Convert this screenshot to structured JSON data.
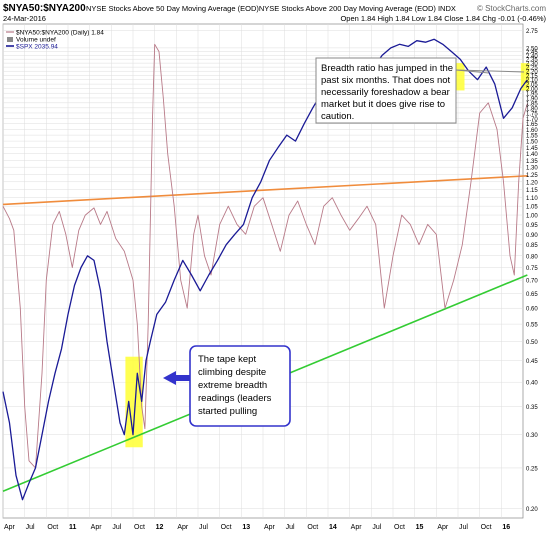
{
  "header": {
    "title": "$NYA50:$NYA200",
    "description": "NYSE Stocks Above 50 Day Moving Average (EOD)NYSE Stocks Above 200 Day Moving Average (EOD) INDX",
    "date": "24-Mar-2016",
    "ohlc": "Open 1.84  High 1.84  Low 1.84  Close 1.84  Chg -0.01 (-0.46%)",
    "source": "© StockCharts.com"
  },
  "legend": {
    "line1": "$NYA50:$NYA200 (Daily) 1.84",
    "line2": "Volume undef",
    "line3": "$SPX 2035.94"
  },
  "annotations": {
    "top_right": "Breadth ratio has jumped in the past six months. That does not necessarily foreshadow a bear market but it does give rise to caution.",
    "top_right_lines": [
      "Breadth ratio has jumped in the",
      "past six months. That does not",
      "necessarily foreshadow a bear",
      "market but it does give rise to",
      "caution."
    ],
    "bottom_left": "The tape kept climbing despite extreme breadth readings (leaders started pulling",
    "bottom_left_lines": [
      "The tape kept",
      "climbing despite",
      "extreme breadth",
      "readings (leaders",
      "started pulling"
    ]
  },
  "colors": {
    "ratio_line": "#b87a88",
    "spx_line": "#1a1a96",
    "resistance_line": "#f08c3c",
    "support_line": "#33cc33",
    "highlight": "#ffff33",
    "callout_border": "#3333cc",
    "grid": "#dddddd"
  },
  "chart_data": {
    "type": "line",
    "title": "$NYA50:$NYA200",
    "x_tick_labels": [
      "Apr",
      "Jul",
      "Oct",
      "11",
      "Apr",
      "Jul",
      "Oct",
      "12",
      "Apr",
      "Jul",
      "Oct",
      "13",
      "Apr",
      "Jul",
      "Oct",
      "14",
      "Apr",
      "Jul",
      "Oct",
      "15",
      "Apr",
      "Jul",
      "Oct",
      "16"
    ],
    "y_tick_labels": [
      "0.20",
      "0.25",
      "0.30",
      "0.35",
      "0.40",
      "0.45",
      "0.50",
      "0.55",
      "0.60",
      "0.65",
      "0.70",
      "0.75",
      "0.80",
      "0.85",
      "0.90",
      "0.95",
      "1.00",
      "1.05",
      "1.10",
      "1.15",
      "1.20",
      "1.25",
      "1.30",
      "1.35",
      "1.40",
      "1.45",
      "1.50",
      "1.55",
      "1.60",
      "1.65",
      "1.70",
      "1.75",
      "1.80",
      "1.85",
      "1.90",
      "1.95",
      "2.00",
      "2.05",
      "2.10",
      "2.15",
      "2.20",
      "2.25",
      "2.30",
      "2.35",
      "2.40",
      "2.45",
      "2.50",
      "2.75"
    ],
    "yscale": "log",
    "ylim": [
      0.19,
      2.85
    ],
    "grid": true,
    "series": [
      {
        "name": "$NYA50:$NYA200",
        "type": "ratio",
        "points": [
          [
            0.0,
            1.05
          ],
          [
            0.3,
            0.98
          ],
          [
            0.5,
            0.92
          ],
          [
            0.8,
            0.6
          ],
          [
            1.0,
            0.35
          ],
          [
            1.2,
            0.26
          ],
          [
            1.5,
            0.25
          ],
          [
            1.8,
            0.42
          ],
          [
            2.0,
            0.7
          ],
          [
            2.3,
            0.95
          ],
          [
            2.6,
            1.02
          ],
          [
            2.9,
            0.9
          ],
          [
            3.2,
            0.75
          ],
          [
            3.5,
            0.92
          ],
          [
            3.8,
            1.0
          ],
          [
            4.2,
            1.04
          ],
          [
            4.5,
            0.95
          ],
          [
            4.8,
            1.02
          ],
          [
            5.2,
            0.88
          ],
          [
            5.6,
            0.82
          ],
          [
            6.0,
            0.7
          ],
          [
            6.2,
            0.55
          ],
          [
            6.4,
            0.35
          ],
          [
            6.55,
            0.31
          ],
          [
            6.7,
            0.55
          ],
          [
            6.9,
            1.7
          ],
          [
            7.0,
            2.55
          ],
          [
            7.2,
            2.45
          ],
          [
            7.4,
            1.9
          ],
          [
            7.6,
            1.4
          ],
          [
            7.9,
            1.05
          ],
          [
            8.2,
            0.7
          ],
          [
            8.5,
            0.6
          ],
          [
            8.8,
            0.9
          ],
          [
            9.0,
            1.0
          ],
          [
            9.3,
            0.8
          ],
          [
            9.6,
            0.72
          ],
          [
            10.0,
            0.95
          ],
          [
            10.4,
            1.05
          ],
          [
            10.8,
            0.95
          ],
          [
            11.2,
            0.9
          ],
          [
            11.6,
            1.05
          ],
          [
            12.0,
            1.1
          ],
          [
            12.4,
            0.95
          ],
          [
            12.8,
            0.82
          ],
          [
            13.2,
            1.0
          ],
          [
            13.6,
            1.08
          ],
          [
            14.0,
            0.95
          ],
          [
            14.4,
            0.85
          ],
          [
            14.8,
            1.05
          ],
          [
            15.2,
            1.1
          ],
          [
            15.6,
            1.0
          ],
          [
            16.0,
            0.92
          ],
          [
            16.4,
            0.98
          ],
          [
            16.8,
            1.05
          ],
          [
            17.2,
            0.95
          ],
          [
            17.6,
            0.6
          ],
          [
            18.0,
            0.8
          ],
          [
            18.4,
            1.0
          ],
          [
            18.8,
            0.95
          ],
          [
            19.2,
            0.85
          ],
          [
            19.6,
            0.95
          ],
          [
            20.0,
            0.9
          ],
          [
            20.4,
            0.6
          ],
          [
            20.8,
            0.7
          ],
          [
            21.2,
            0.85
          ],
          [
            21.6,
            1.2
          ],
          [
            22.0,
            1.75
          ],
          [
            22.4,
            1.85
          ],
          [
            22.8,
            1.6
          ],
          [
            23.1,
            1.2
          ],
          [
            23.4,
            0.8
          ],
          [
            23.6,
            0.72
          ],
          [
            23.8,
            1.2
          ],
          [
            24.0,
            1.7
          ],
          [
            24.2,
            1.84
          ]
        ]
      },
      {
        "name": "$SPX",
        "type": "price",
        "points": [
          [
            0.0,
            0.38
          ],
          [
            0.3,
            0.32
          ],
          [
            0.6,
            0.24
          ],
          [
            0.9,
            0.21
          ],
          [
            1.2,
            0.23
          ],
          [
            1.5,
            0.25
          ],
          [
            1.8,
            0.3
          ],
          [
            2.1,
            0.36
          ],
          [
            2.4,
            0.42
          ],
          [
            2.7,
            0.48
          ],
          [
            3.0,
            0.58
          ],
          [
            3.3,
            0.68
          ],
          [
            3.6,
            0.75
          ],
          [
            3.9,
            0.8
          ],
          [
            4.2,
            0.78
          ],
          [
            4.5,
            0.66
          ],
          [
            4.8,
            0.5
          ],
          [
            5.1,
            0.4
          ],
          [
            5.4,
            0.32
          ],
          [
            5.6,
            0.3
          ],
          [
            5.8,
            0.36
          ],
          [
            6.0,
            0.3
          ],
          [
            6.2,
            0.42
          ],
          [
            6.4,
            0.36
          ],
          [
            6.6,
            0.45
          ],
          [
            6.8,
            0.5
          ],
          [
            7.1,
            0.58
          ],
          [
            7.5,
            0.62
          ],
          [
            7.9,
            0.7
          ],
          [
            8.3,
            0.78
          ],
          [
            8.7,
            0.72
          ],
          [
            9.1,
            0.66
          ],
          [
            9.5,
            0.72
          ],
          [
            9.9,
            0.78
          ],
          [
            10.3,
            0.85
          ],
          [
            10.7,
            0.9
          ],
          [
            11.1,
            0.95
          ],
          [
            11.5,
            1.1
          ],
          [
            11.9,
            1.2
          ],
          [
            12.3,
            1.35
          ],
          [
            12.7,
            1.45
          ],
          [
            13.1,
            1.55
          ],
          [
            13.5,
            1.5
          ],
          [
            13.9,
            1.65
          ],
          [
            14.3,
            1.8
          ],
          [
            14.7,
            1.95
          ],
          [
            15.1,
            2.05
          ],
          [
            15.5,
            2.0
          ],
          [
            15.9,
            2.15
          ],
          [
            16.3,
            2.3
          ],
          [
            16.7,
            2.35
          ],
          [
            17.1,
            2.25
          ],
          [
            17.5,
            2.4
          ],
          [
            17.9,
            2.5
          ],
          [
            18.3,
            2.55
          ],
          [
            18.7,
            2.52
          ],
          [
            19.1,
            2.6
          ],
          [
            19.5,
            2.58
          ],
          [
            19.9,
            2.62
          ],
          [
            20.3,
            2.55
          ],
          [
            20.7,
            2.45
          ],
          [
            21.1,
            2.35
          ],
          [
            21.5,
            2.2
          ],
          [
            21.9,
            2.1
          ],
          [
            22.3,
            2.25
          ],
          [
            22.7,
            2.05
          ],
          [
            23.1,
            1.7
          ],
          [
            23.5,
            1.8
          ],
          [
            23.9,
            2.0
          ],
          [
            24.2,
            2.1
          ]
        ]
      }
    ],
    "trendlines": [
      {
        "name": "resistance",
        "from": [
          0.0,
          1.06
        ],
        "to": [
          24.2,
          1.24
        ]
      },
      {
        "name": "support",
        "from": [
          0.0,
          0.22
        ],
        "to": [
          24.2,
          0.72
        ]
      }
    ]
  }
}
